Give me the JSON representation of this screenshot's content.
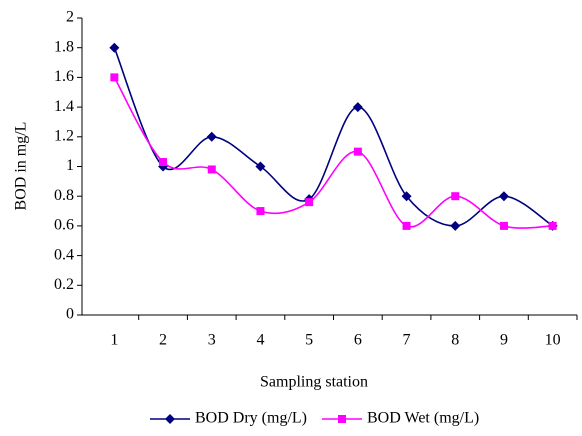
{
  "chart_data": {
    "type": "line",
    "categories": [
      "1",
      "2",
      "3",
      "4",
      "5",
      "6",
      "7",
      "8",
      "9",
      "10"
    ],
    "series": [
      {
        "name": "BOD Dry (mg/L)",
        "color": "#000080",
        "marker": "diamond",
        "values": [
          1.8,
          1.0,
          1.2,
          1.0,
          0.78,
          1.4,
          0.8,
          0.6,
          0.8,
          0.6
        ]
      },
      {
        "name": "BOD Wet (mg/L)",
        "color": "#ff00ff",
        "marker": "square",
        "values": [
          1.6,
          1.03,
          0.98,
          0.7,
          0.76,
          1.1,
          0.6,
          0.8,
          0.6,
          0.6
        ]
      }
    ],
    "xlabel": "Sampling station",
    "ylabel": "BOD in mg/L",
    "ylim": [
      0,
      2
    ],
    "yticks": [
      0,
      0.2,
      0.4,
      0.6,
      0.8,
      1,
      1.2,
      1.4,
      1.6,
      1.8,
      2
    ],
    "smooth": true,
    "legend": "bottom"
  }
}
